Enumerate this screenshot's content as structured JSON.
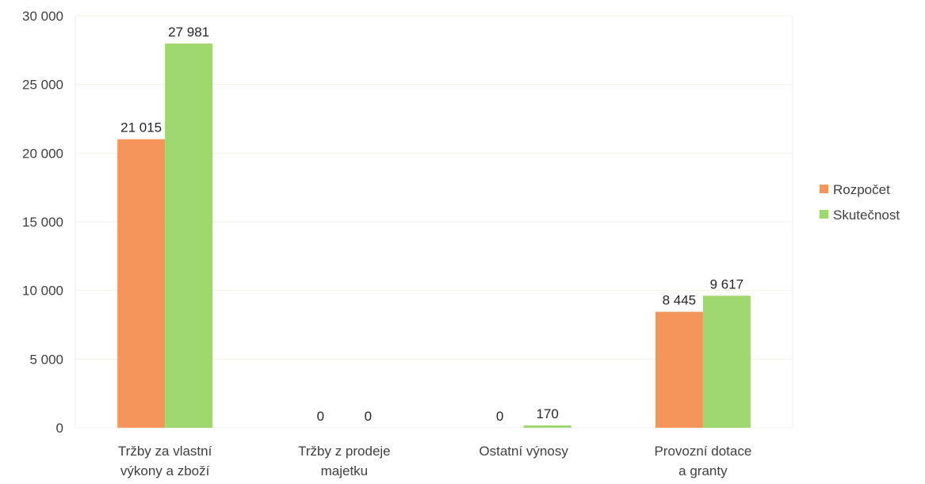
{
  "chart_data": {
    "type": "bar",
    "categories": [
      [
        "Tržby za vlastní",
        "výkony a zboží"
      ],
      [
        "Tržby z prodeje",
        "majetku"
      ],
      [
        "Ostatní výnosy"
      ],
      [
        "Provozní dotace",
        "a granty"
      ]
    ],
    "series": [
      {
        "name": "Rozpočet",
        "values": [
          21015,
          0,
          0,
          8445
        ],
        "labels": [
          "21 015",
          "0",
          "0",
          "8 445"
        ],
        "color": "#F4955B"
      },
      {
        "name": "Skutečnost",
        "values": [
          27981,
          0,
          170,
          9617
        ],
        "labels": [
          "27 981",
          "0",
          "170",
          "9 617"
        ],
        "color": "#9FD86E"
      }
    ],
    "ylim": [
      0,
      30000
    ],
    "yticks": [
      {
        "value": 0,
        "label": "0"
      },
      {
        "value": 5000,
        "label": "5 000"
      },
      {
        "value": 10000,
        "label": "10 000"
      },
      {
        "value": 15000,
        "label": "15 000"
      },
      {
        "value": 20000,
        "label": "20 000"
      },
      {
        "value": 25000,
        "label": "25 000"
      },
      {
        "value": 30000,
        "label": "30 000"
      }
    ],
    "grid": true,
    "gridColor": "#f2f2e3",
    "legend": "right"
  }
}
